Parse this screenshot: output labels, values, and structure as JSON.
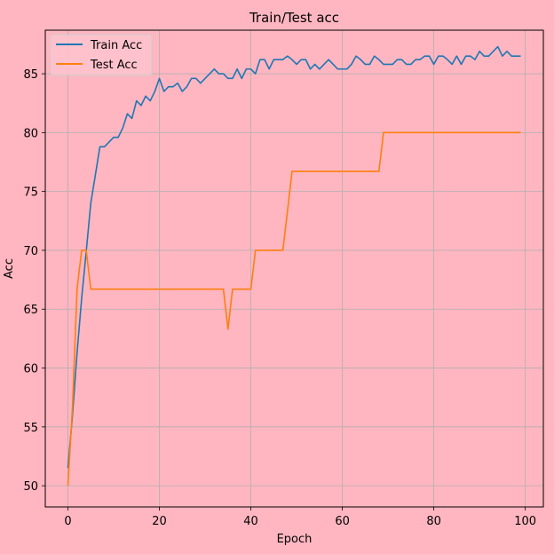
{
  "chart_data": {
    "type": "line",
    "title": "Train/Test acc",
    "xlabel": "Epoch",
    "ylabel": "Acc",
    "xlim": [
      -4.95,
      103.95
    ],
    "ylim": [
      48.2,
      88.7
    ],
    "xticks": [
      0,
      20,
      40,
      60,
      80,
      100
    ],
    "yticks": [
      50,
      55,
      60,
      65,
      70,
      75,
      80,
      85
    ],
    "grid": true,
    "legend_position": "upper-left",
    "background_color": "#ffb6c1",
    "series": [
      {
        "name": "Train Acc",
        "color": "#1f77b4",
        "values": [
          51.5,
          56.0,
          61.3,
          65.9,
          69.9,
          74.0,
          76.4,
          78.8,
          78.8,
          79.2,
          79.6,
          79.6,
          80.4,
          81.6,
          81.2,
          82.7,
          82.3,
          83.1,
          82.7,
          83.5,
          84.6,
          83.5,
          83.9,
          83.9,
          84.2,
          83.5,
          83.9,
          84.6,
          84.6,
          84.2,
          84.6,
          85.0,
          85.4,
          85.0,
          85.0,
          84.6,
          84.6,
          85.4,
          84.6,
          85.4,
          85.4,
          85.0,
          86.2,
          86.2,
          85.4,
          86.2,
          86.2,
          86.2,
          86.5,
          86.2,
          85.8,
          86.2,
          86.2,
          85.4,
          85.8,
          85.4,
          85.8,
          86.2,
          85.8,
          85.4,
          85.4,
          85.4,
          85.8,
          86.5,
          86.2,
          85.8,
          85.8,
          86.5,
          86.2,
          85.8,
          85.8,
          85.8,
          86.2,
          86.2,
          85.8,
          85.8,
          86.2,
          86.2,
          86.5,
          86.5,
          85.8,
          86.5,
          86.5,
          86.2,
          85.8,
          86.5,
          85.8,
          86.5,
          86.5,
          86.2,
          86.9,
          86.5,
          86.5,
          86.9,
          87.3,
          86.5,
          86.9,
          86.5,
          86.5,
          86.5
        ]
      },
      {
        "name": "Test Acc",
        "color": "#ff7f0e",
        "values": [
          50.0,
          56.7,
          66.7,
          70.0,
          70.0,
          66.7,
          66.7,
          66.7,
          66.7,
          66.7,
          66.7,
          66.7,
          66.7,
          66.7,
          66.7,
          66.7,
          66.7,
          66.7,
          66.7,
          66.7,
          66.7,
          66.7,
          66.7,
          66.7,
          66.7,
          66.7,
          66.7,
          66.7,
          66.7,
          66.7,
          66.7,
          66.7,
          66.7,
          66.7,
          66.7,
          63.3,
          66.7,
          66.7,
          66.7,
          66.7,
          66.7,
          70.0,
          70.0,
          70.0,
          70.0,
          70.0,
          70.0,
          70.0,
          73.3,
          76.7,
          76.7,
          76.7,
          76.7,
          76.7,
          76.7,
          76.7,
          76.7,
          76.7,
          76.7,
          76.7,
          76.7,
          76.7,
          76.7,
          76.7,
          76.7,
          76.7,
          76.7,
          76.7,
          76.7,
          80.0,
          80.0,
          80.0,
          80.0,
          80.0,
          80.0,
          80.0,
          80.0,
          80.0,
          80.0,
          80.0,
          80.0,
          80.0,
          80.0,
          80.0,
          80.0,
          80.0,
          80.0,
          80.0,
          80.0,
          80.0,
          80.0,
          80.0,
          80.0,
          80.0,
          80.0,
          80.0,
          80.0,
          80.0,
          80.0,
          80.0
        ]
      }
    ]
  }
}
